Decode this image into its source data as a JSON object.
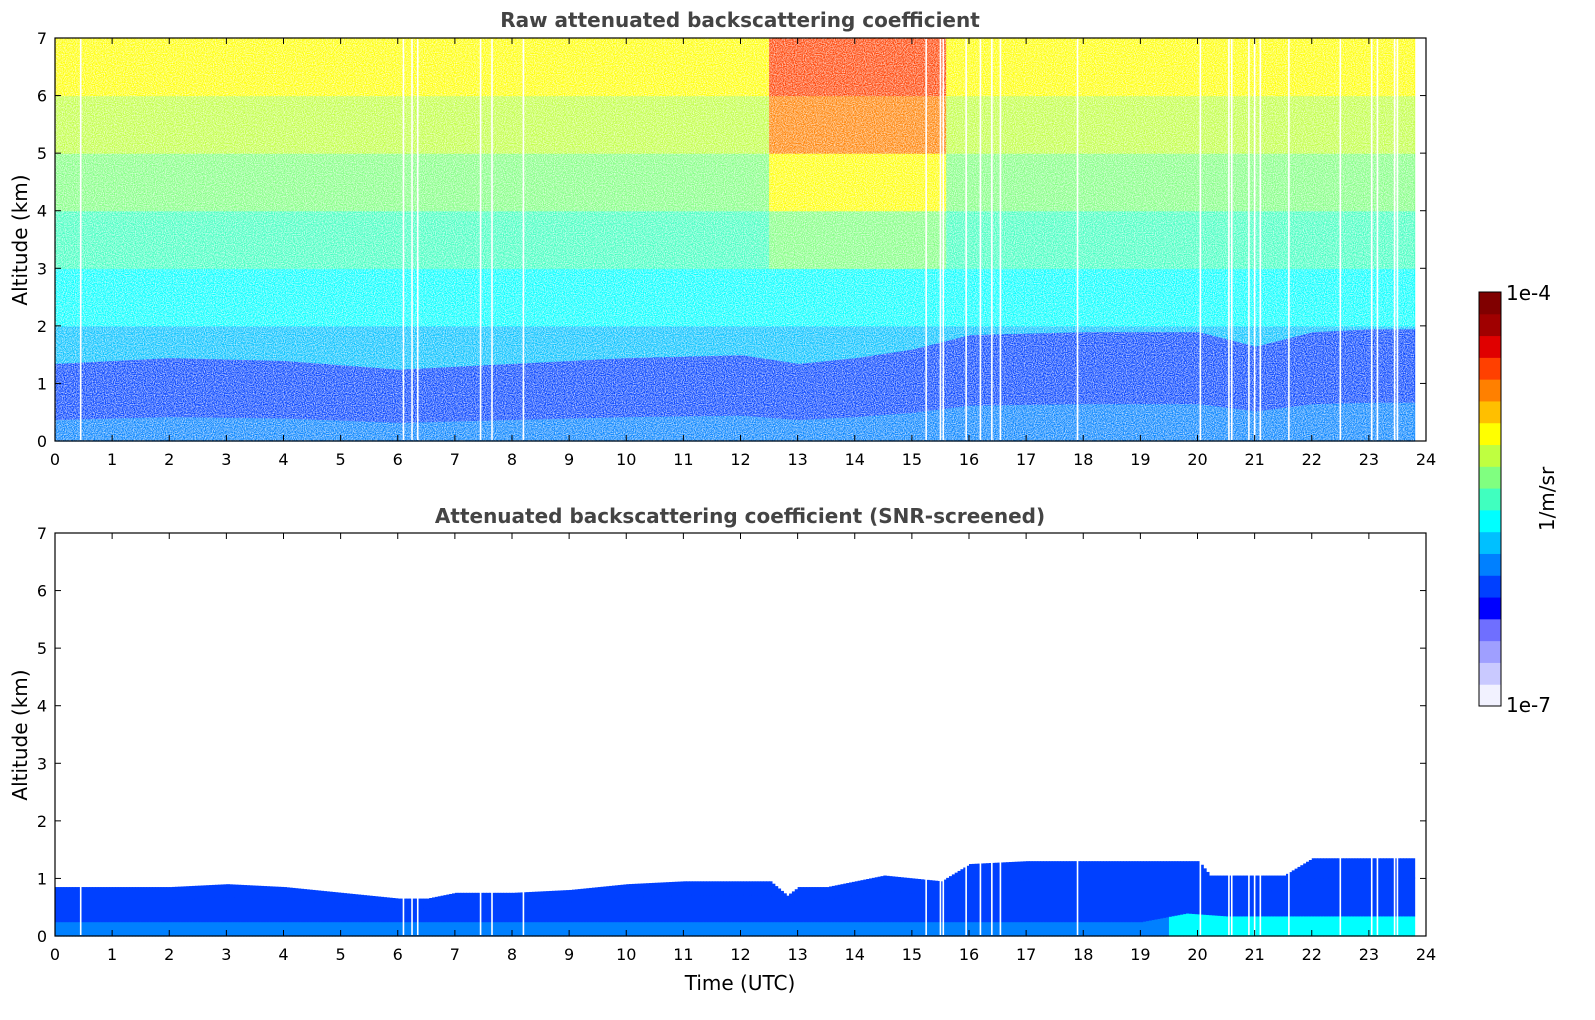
{
  "chart_data": [
    {
      "type": "heatmap",
      "title": "Raw attenuated backscattering coefficient",
      "xlabel": "",
      "ylabel": "Altitude (km)",
      "xlim": [
        0,
        24
      ],
      "ylim": [
        0,
        7
      ],
      "xticks": [
        "0",
        "1",
        "2",
        "3",
        "4",
        "5",
        "6",
        "7",
        "8",
        "9",
        "10",
        "11",
        "12",
        "13",
        "14",
        "15",
        "16",
        "17",
        "18",
        "19",
        "20",
        "21",
        "22",
        "23",
        "24"
      ],
      "yticks": [
        "0",
        "1",
        "2",
        "3",
        "4",
        "5",
        "6",
        "7"
      ],
      "data_end_hour": 23.8,
      "boundary_layer_top_km": {
        "hours": [
          0,
          2,
          4,
          6,
          8,
          10,
          12,
          13,
          14,
          15,
          16,
          18,
          19,
          20,
          21,
          22,
          23,
          23.8
        ],
        "values": [
          0.75,
          0.85,
          0.8,
          0.65,
          0.75,
          0.85,
          0.9,
          0.75,
          0.85,
          1.0,
          1.25,
          1.3,
          1.3,
          1.3,
          1.05,
          1.3,
          1.35,
          1.35
        ]
      },
      "data_gaps_hours": [
        0.45,
        6.1,
        6.25,
        6.35,
        7.45,
        7.65,
        8.2,
        15.25,
        15.5,
        15.55,
        15.95,
        16.2,
        16.4,
        16.55,
        17.9,
        20.05,
        20.55,
        20.6,
        20.9,
        21.0,
        21.1,
        21.6,
        22.5,
        23.05,
        23.15,
        23.45,
        23.5
      ],
      "noise_enhanced_window_hours": [
        12.5,
        15.6
      ]
    },
    {
      "type": "heatmap",
      "title": "Attenuated backscattering coefficient (SNR-screened)",
      "xlabel": "Time (UTC)",
      "ylabel": "Altitude (km)",
      "xlim": [
        0,
        24
      ],
      "ylim": [
        0,
        7
      ],
      "xticks": [
        "0",
        "1",
        "2",
        "3",
        "4",
        "5",
        "6",
        "7",
        "8",
        "9",
        "10",
        "11",
        "12",
        "13",
        "14",
        "15",
        "16",
        "17",
        "18",
        "19",
        "20",
        "21",
        "22",
        "23",
        "24"
      ],
      "yticks": [
        "0",
        "1",
        "2",
        "3",
        "4",
        "5",
        "6",
        "7"
      ],
      "data_end_hour": 23.8,
      "boundary_layer_top_km": {
        "hours": [
          0,
          1,
          2,
          3,
          4,
          5,
          6,
          6.5,
          7,
          8,
          9,
          10,
          11,
          12,
          12.5,
          12.8,
          13,
          13.5,
          14,
          14.5,
          15,
          15.5,
          16,
          17,
          18,
          19,
          20,
          20.2,
          21,
          21.5,
          22,
          23,
          23.8
        ],
        "values": [
          0.85,
          0.85,
          0.85,
          0.9,
          0.85,
          0.75,
          0.65,
          0.65,
          0.75,
          0.75,
          0.8,
          0.9,
          0.95,
          0.95,
          0.95,
          0.7,
          0.85,
          0.85,
          0.95,
          1.05,
          1.0,
          0.95,
          1.25,
          1.3,
          1.3,
          1.3,
          1.3,
          1.05,
          1.05,
          1.05,
          1.35,
          1.35,
          1.35
        ]
      },
      "aerosol_layer_height_km": {
        "hours": [
          0,
          19,
          19.8,
          20.5,
          21.5,
          23.8
        ],
        "values": [
          0.25,
          0.25,
          0.4,
          0.35,
          0.35,
          0.35
        ]
      },
      "data_gaps_hours": [
        0.45,
        6.1,
        6.25,
        6.35,
        7.45,
        7.65,
        8.2,
        15.25,
        15.5,
        15.55,
        15.95,
        16.2,
        16.4,
        16.55,
        17.9,
        20.05,
        20.55,
        20.6,
        20.9,
        21.0,
        21.1,
        21.6,
        22.5,
        23.05,
        23.15,
        23.45,
        23.5
      ]
    }
  ],
  "colorbar": {
    "label": "1/m/sr",
    "min_label": "1e-7",
    "max_label": "1e-4",
    "scale": "log",
    "range": [
      1e-07,
      0.0001
    ],
    "colors": [
      "#f2f2ff",
      "#c9c9ff",
      "#9f9fff",
      "#6f6fff",
      "#0000ff",
      "#0040ff",
      "#0080ff",
      "#00c0ff",
      "#00ffff",
      "#40ffbf",
      "#80ff80",
      "#bfff40",
      "#ffff00",
      "#ffbf00",
      "#ff8000",
      "#ff4000",
      "#e00000",
      "#a00000",
      "#800000"
    ]
  }
}
